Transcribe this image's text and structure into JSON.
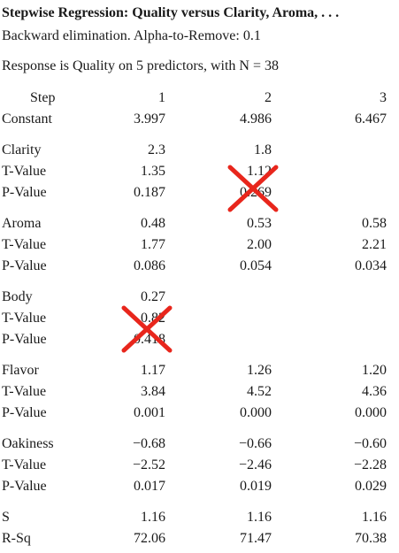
{
  "title": "Stepwise Regression: Quality versus Clarity, Aroma, . . .",
  "subtitle": "Backward elimination. Alpha-to-Remove: 0.1",
  "response_line": "Response is Quality on 5 predictors, with N = 38",
  "header": {
    "label": "Step",
    "c1": "1",
    "c2": "2",
    "c3": "3"
  },
  "constant": {
    "label": "Constant",
    "c1": "3.997",
    "c2": "4.986",
    "c3": "6.467"
  },
  "groups": [
    {
      "rows": [
        {
          "label": "Clarity",
          "c1": "2.3",
          "c2": "1.8",
          "c3": ""
        },
        {
          "label": "T-Value",
          "c1": "1.35",
          "c2": "1.12",
          "c3": ""
        },
        {
          "label": "P-Value",
          "c1": "0.187",
          "c2": "0.269",
          "c3": ""
        }
      ]
    },
    {
      "rows": [
        {
          "label": "Aroma",
          "c1": "0.48",
          "c2": "0.53",
          "c3": "0.58"
        },
        {
          "label": "T-Value",
          "c1": "1.77",
          "c2": "2.00",
          "c3": "2.21"
        },
        {
          "label": "P-Value",
          "c1": "0.086",
          "c2": "0.054",
          "c3": "0.034"
        }
      ]
    },
    {
      "rows": [
        {
          "label": "Body",
          "c1": "0.27",
          "c2": "",
          "c3": ""
        },
        {
          "label": "T-Value",
          "c1": "0.82",
          "c2": "",
          "c3": ""
        },
        {
          "label": "P-Value",
          "c1": "0.418",
          "c2": "",
          "c3": ""
        }
      ]
    },
    {
      "rows": [
        {
          "label": "Flavor",
          "c1": "1.17",
          "c2": "1.26",
          "c3": "1.20"
        },
        {
          "label": "T-Value",
          "c1": "3.84",
          "c2": "4.52",
          "c3": "4.36"
        },
        {
          "label": "P-Value",
          "c1": "0.001",
          "c2": "0.000",
          "c3": "0.000"
        }
      ]
    },
    {
      "rows": [
        {
          "label": "Oakiness",
          "c1": "−0.68",
          "c2": "−0.66",
          "c3": "−0.60"
        },
        {
          "label": "T-Value",
          "c1": "−2.52",
          "c2": "−2.46",
          "c3": "−2.28"
        },
        {
          "label": "P-Value",
          "c1": "0.017",
          "c2": "0.019",
          "c3": "0.029"
        }
      ]
    },
    {
      "rows": [
        {
          "label": "S",
          "c1": "1.16",
          "c2": "1.16",
          "c3": "1.16"
        },
        {
          "label": "R-Sq",
          "c1": "72.06",
          "c2": "71.47",
          "c3": "70.38"
        }
      ]
    }
  ],
  "annotations": {
    "cross_color": "#e8261c",
    "cross_icon": "red-x-cross-icon"
  }
}
